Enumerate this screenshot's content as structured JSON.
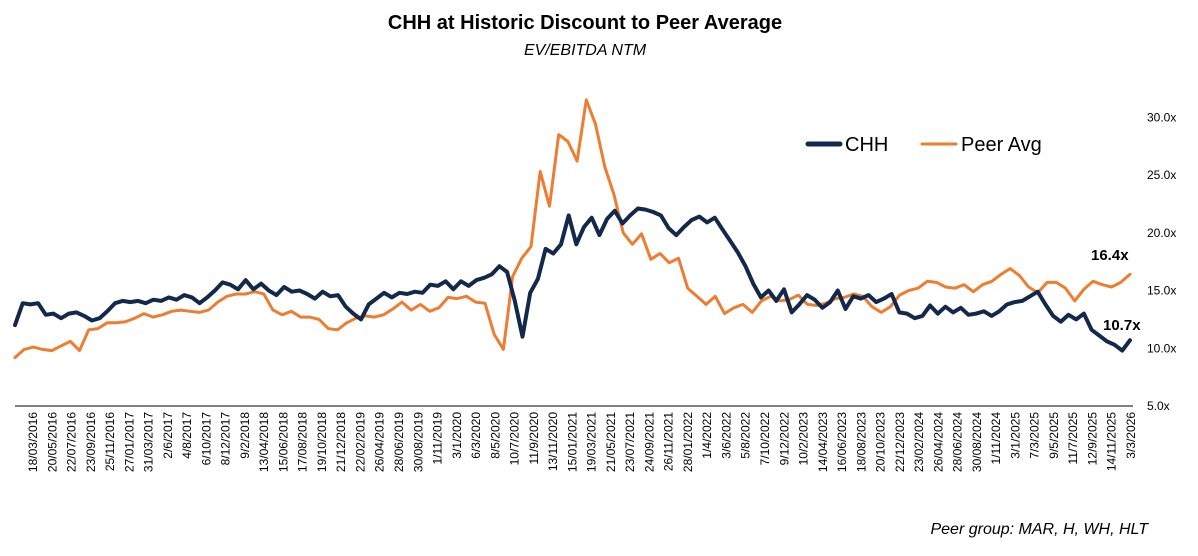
{
  "chart_data": {
    "type": "line",
    "title": "CHH at Historic Discount to Peer Average",
    "subtitle": "EV/EBITDA NTM",
    "footnote": "Peer group: MAR, H, WH, HLT",
    "ylim": [
      5,
      32
    ],
    "y_ticks": [
      5,
      10,
      15,
      20,
      25,
      30
    ],
    "y_tick_labels": [
      "5.0x",
      "10.0x",
      "15.0x",
      "20.0x",
      "25.0x",
      "30.0x"
    ],
    "x_tick_labels": [
      "18/03/2016",
      "20/05/2016",
      "22/07/2016",
      "23/09/2016",
      "25/11/2016",
      "27/01/2017",
      "31/03/2017",
      "2/6/2017",
      "4/8/2017",
      "6/10/2017",
      "8/12/2017",
      "9/2/2018",
      "13/04/2018",
      "15/06/2018",
      "17/08/2018",
      "19/10/2018",
      "21/12/2018",
      "22/02/2019",
      "26/04/2019",
      "28/06/2019",
      "30/08/2019",
      "1/11/2019",
      "3/1/2020",
      "6/3/2020",
      "8/5/2020",
      "10/7/2020",
      "11/9/2020",
      "13/11/2020",
      "15/01/2021",
      "19/03/2021",
      "21/05/2021",
      "23/07/2021",
      "24/09/2021",
      "26/11/2021",
      "28/01/2022",
      "1/4/2022",
      "3/6/2022",
      "5/8/2022",
      "7/10/2022",
      "9/12/2022",
      "10/2/2023",
      "14/04/2023",
      "16/06/2023",
      "18/08/2023",
      "20/10/2023",
      "22/12/2023",
      "23/02/2024",
      "26/04/2024",
      "28/06/2024",
      "30/08/2024",
      "1/11/2024",
      "3/1/2025",
      "7/3/2025",
      "9/5/2025",
      "11/7/2025",
      "12/9/2025",
      "14/11/2025",
      "3/3/2026"
    ],
    "legend_position": "top-right",
    "end_labels": [
      "10.7x",
      "16.4x"
    ],
    "series": [
      {
        "name": "CHH",
        "color": "#13294b",
        "values": [
          12.0,
          13.9,
          13.8,
          13.9,
          12.9,
          13.0,
          12.6,
          13.0,
          13.1,
          12.8,
          12.4,
          12.6,
          13.2,
          13.9,
          14.1,
          14.0,
          14.1,
          13.9,
          14.2,
          14.1,
          14.4,
          14.2,
          14.6,
          14.4,
          13.9,
          14.4,
          15.0,
          15.7,
          15.5,
          15.1,
          15.9,
          15.1,
          15.6,
          15.0,
          14.6,
          15.3,
          14.9,
          15.0,
          14.7,
          14.3,
          14.9,
          14.5,
          14.6,
          13.6,
          13.0,
          12.5,
          13.8,
          14.3,
          14.8,
          14.4,
          14.8,
          14.7,
          14.9,
          14.8,
          15.5,
          15.4,
          15.8,
          15.1,
          15.8,
          15.4,
          15.9,
          16.1,
          16.4,
          17.1,
          16.6,
          14.1,
          11.0,
          14.8,
          16.0,
          18.6,
          18.2,
          19.0,
          21.5,
          19.0,
          20.5,
          21.3,
          19.8,
          21.2,
          21.9,
          20.8,
          21.5,
          22.1,
          22.0,
          21.8,
          21.5,
          20.4,
          19.8,
          20.5,
          21.1,
          21.4,
          20.9,
          21.3,
          20.3,
          19.3,
          18.3,
          17.1,
          15.6,
          14.4,
          15.0,
          14.1,
          15.1,
          13.1,
          13.8,
          14.6,
          14.2,
          13.5,
          14.0,
          15.0,
          13.4,
          14.5,
          14.3,
          14.6,
          14.0,
          14.3,
          14.7,
          13.1,
          13.0,
          12.6,
          12.8,
          13.7,
          13.0,
          13.6,
          13.1,
          13.5,
          12.9,
          13.0,
          13.2,
          12.8,
          13.2,
          13.8,
          14.0,
          14.1,
          14.5,
          14.9,
          13.8,
          12.8,
          12.3,
          12.9,
          12.5,
          13.0,
          11.6,
          11.1,
          10.6,
          10.3,
          9.8,
          10.7
        ]
      },
      {
        "name": "Peer Avg",
        "color": "#ed7d31",
        "values": [
          9.2,
          9.9,
          10.1,
          9.9,
          9.8,
          10.2,
          10.6,
          9.8,
          11.6,
          11.7,
          12.2,
          12.2,
          12.3,
          12.6,
          13.0,
          12.7,
          12.9,
          13.2,
          13.3,
          13.2,
          13.1,
          13.3,
          14.0,
          14.5,
          14.7,
          14.7,
          14.9,
          14.7,
          13.3,
          12.9,
          13.2,
          12.7,
          12.7,
          12.5,
          11.7,
          11.6,
          12.2,
          12.6,
          12.8,
          12.7,
          12.9,
          13.4,
          14.0,
          13.3,
          13.8,
          13.2,
          13.5,
          14.4,
          14.3,
          14.5,
          14.0,
          13.9,
          11.2,
          9.9,
          16.2,
          17.8,
          18.8,
          25.3,
          22.3,
          28.5,
          27.9,
          26.2,
          31.5,
          29.4,
          25.7,
          23.3,
          20.0,
          19.0,
          19.9,
          17.7,
          18.2,
          17.4,
          17.8,
          15.2,
          14.5,
          13.8,
          14.5,
          13.0,
          13.5,
          13.8,
          13.1,
          14.1,
          14.5,
          14.1,
          14.2,
          14.6,
          13.8,
          13.7,
          13.9,
          14.3,
          14.4,
          14.7,
          14.5,
          13.6,
          13.1,
          13.6,
          14.6,
          15.0,
          15.2,
          15.8,
          15.7,
          15.3,
          15.2,
          15.5,
          14.9,
          15.5,
          15.8,
          16.4,
          16.9,
          16.3,
          15.3,
          14.8,
          15.7,
          15.7,
          15.2,
          14.1,
          15.1,
          15.8,
          15.5,
          15.3,
          15.7,
          16.4
        ]
      }
    ]
  }
}
